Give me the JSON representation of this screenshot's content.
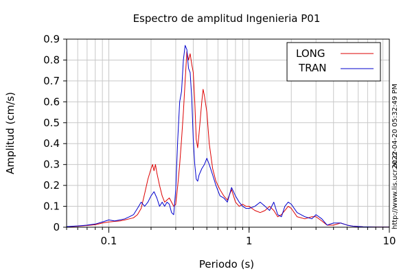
{
  "chart_data": {
    "type": "line",
    "title": "Espectro de amplitud Ingenieria P01",
    "xlabel": "Periodo (s)",
    "ylabel": "Amplitud (cm/s)",
    "xscale": "log",
    "xlim": [
      0.05,
      10
    ],
    "ylim": [
      0,
      0.9
    ],
    "grid": true,
    "legend_position": "top-right",
    "x_ticks": [
      {
        "value": 0.1,
        "label": "0.1"
      },
      {
        "value": 1,
        "label": "1"
      },
      {
        "value": 10,
        "label": "10"
      }
    ],
    "y_ticks": [
      {
        "value": 0,
        "label": "0"
      },
      {
        "value": 0.1,
        "label": "0.1"
      },
      {
        "value": 0.2,
        "label": "0.2"
      },
      {
        "value": 0.3,
        "label": "0.3"
      },
      {
        "value": 0.4,
        "label": "0.4"
      },
      {
        "value": 0.5,
        "label": "0.5"
      },
      {
        "value": 0.6,
        "label": "0.6"
      },
      {
        "value": 0.7,
        "label": "0.7"
      },
      {
        "value": 0.8,
        "label": "0.8"
      },
      {
        "value": 0.9,
        "label": "0.9"
      }
    ],
    "series": [
      {
        "name": "LONG",
        "color": "#dd0000",
        "points": [
          [
            0.05,
            0.002
          ],
          [
            0.06,
            0.005
          ],
          [
            0.07,
            0.008
          ],
          [
            0.08,
            0.012
          ],
          [
            0.09,
            0.02
          ],
          [
            0.1,
            0.025
          ],
          [
            0.11,
            0.028
          ],
          [
            0.12,
            0.03
          ],
          [
            0.13,
            0.035
          ],
          [
            0.14,
            0.04
          ],
          [
            0.15,
            0.045
          ],
          [
            0.16,
            0.06
          ],
          [
            0.17,
            0.09
          ],
          [
            0.18,
            0.16
          ],
          [
            0.19,
            0.23
          ],
          [
            0.2,
            0.28
          ],
          [
            0.205,
            0.3
          ],
          [
            0.21,
            0.27
          ],
          [
            0.215,
            0.3
          ],
          [
            0.22,
            0.26
          ],
          [
            0.23,
            0.2
          ],
          [
            0.24,
            0.15
          ],
          [
            0.25,
            0.12
          ],
          [
            0.26,
            0.13
          ],
          [
            0.27,
            0.14
          ],
          [
            0.28,
            0.12
          ],
          [
            0.29,
            0.1
          ],
          [
            0.3,
            0.11
          ],
          [
            0.31,
            0.2
          ],
          [
            0.32,
            0.3
          ],
          [
            0.33,
            0.42
          ],
          [
            0.34,
            0.55
          ],
          [
            0.35,
            0.7
          ],
          [
            0.36,
            0.84
          ],
          [
            0.37,
            0.8
          ],
          [
            0.38,
            0.83
          ],
          [
            0.39,
            0.78
          ],
          [
            0.4,
            0.74
          ],
          [
            0.41,
            0.6
          ],
          [
            0.42,
            0.42
          ],
          [
            0.43,
            0.38
          ],
          [
            0.44,
            0.45
          ],
          [
            0.46,
            0.6
          ],
          [
            0.47,
            0.66
          ],
          [
            0.48,
            0.63
          ],
          [
            0.5,
            0.55
          ],
          [
            0.52,
            0.4
          ],
          [
            0.55,
            0.28
          ],
          [
            0.58,
            0.22
          ],
          [
            0.62,
            0.18
          ],
          [
            0.66,
            0.15
          ],
          [
            0.7,
            0.13
          ],
          [
            0.75,
            0.18
          ],
          [
            0.8,
            0.12
          ],
          [
            0.85,
            0.1
          ],
          [
            0.9,
            0.11
          ],
          [
            0.95,
            0.1
          ],
          [
            1.0,
            0.1
          ],
          [
            1.1,
            0.08
          ],
          [
            1.2,
            0.07
          ],
          [
            1.3,
            0.08
          ],
          [
            1.4,
            0.1
          ],
          [
            1.5,
            0.08
          ],
          [
            1.6,
            0.05
          ],
          [
            1.7,
            0.06
          ],
          [
            1.8,
            0.08
          ],
          [
            1.9,
            0.1
          ],
          [
            2.0,
            0.09
          ],
          [
            2.2,
            0.05
          ],
          [
            2.5,
            0.04
          ],
          [
            2.8,
            0.05
          ],
          [
            3.0,
            0.05
          ],
          [
            3.3,
            0.03
          ],
          [
            3.6,
            0.01
          ],
          [
            4.0,
            0.01
          ],
          [
            4.5,
            0.02
          ],
          [
            5.0,
            0.01
          ],
          [
            5.5,
            0.005
          ],
          [
            6.5,
            0.002
          ],
          [
            8.0,
            0.001
          ],
          [
            10.0,
            0.001
          ]
        ]
      },
      {
        "name": "TRAN",
        "color": "#0000cc",
        "points": [
          [
            0.05,
            0.003
          ],
          [
            0.06,
            0.006
          ],
          [
            0.07,
            0.01
          ],
          [
            0.08,
            0.015
          ],
          [
            0.09,
            0.025
          ],
          [
            0.1,
            0.035
          ],
          [
            0.11,
            0.03
          ],
          [
            0.12,
            0.035
          ],
          [
            0.13,
            0.04
          ],
          [
            0.14,
            0.05
          ],
          [
            0.15,
            0.06
          ],
          [
            0.16,
            0.09
          ],
          [
            0.17,
            0.12
          ],
          [
            0.18,
            0.1
          ],
          [
            0.19,
            0.12
          ],
          [
            0.2,
            0.15
          ],
          [
            0.21,
            0.17
          ],
          [
            0.22,
            0.14
          ],
          [
            0.23,
            0.1
          ],
          [
            0.24,
            0.12
          ],
          [
            0.25,
            0.1
          ],
          [
            0.26,
            0.12
          ],
          [
            0.27,
            0.11
          ],
          [
            0.28,
            0.07
          ],
          [
            0.29,
            0.06
          ],
          [
            0.3,
            0.18
          ],
          [
            0.31,
            0.42
          ],
          [
            0.32,
            0.6
          ],
          [
            0.33,
            0.65
          ],
          [
            0.34,
            0.8
          ],
          [
            0.35,
            0.87
          ],
          [
            0.36,
            0.85
          ],
          [
            0.37,
            0.76
          ],
          [
            0.38,
            0.74
          ],
          [
            0.39,
            0.62
          ],
          [
            0.4,
            0.42
          ],
          [
            0.41,
            0.3
          ],
          [
            0.42,
            0.23
          ],
          [
            0.43,
            0.22
          ],
          [
            0.44,
            0.25
          ],
          [
            0.46,
            0.28
          ],
          [
            0.48,
            0.3
          ],
          [
            0.5,
            0.33
          ],
          [
            0.52,
            0.3
          ],
          [
            0.55,
            0.25
          ],
          [
            0.58,
            0.2
          ],
          [
            0.62,
            0.15
          ],
          [
            0.66,
            0.14
          ],
          [
            0.7,
            0.12
          ],
          [
            0.75,
            0.19
          ],
          [
            0.8,
            0.15
          ],
          [
            0.85,
            0.12
          ],
          [
            0.9,
            0.1
          ],
          [
            0.95,
            0.09
          ],
          [
            1.0,
            0.09
          ],
          [
            1.1,
            0.1
          ],
          [
            1.2,
            0.12
          ],
          [
            1.3,
            0.1
          ],
          [
            1.4,
            0.08
          ],
          [
            1.5,
            0.12
          ],
          [
            1.6,
            0.06
          ],
          [
            1.7,
            0.05
          ],
          [
            1.8,
            0.1
          ],
          [
            1.9,
            0.12
          ],
          [
            2.0,
            0.11
          ],
          [
            2.2,
            0.07
          ],
          [
            2.5,
            0.05
          ],
          [
            2.8,
            0.04
          ],
          [
            3.0,
            0.06
          ],
          [
            3.3,
            0.04
          ],
          [
            3.6,
            0.01
          ],
          [
            4.0,
            0.02
          ],
          [
            4.5,
            0.02
          ],
          [
            5.0,
            0.01
          ],
          [
            5.5,
            0.005
          ],
          [
            6.5,
            0.002
          ],
          [
            8.0,
            0.001
          ],
          [
            10.0,
            0.001
          ]
        ]
      }
    ],
    "annotations": [
      {
        "text": "2022-04-20 05:32:49 PM",
        "orientation": "vertical"
      },
      {
        "text": "http://www.lis.ucr.ac.cr",
        "orientation": "vertical"
      }
    ]
  }
}
